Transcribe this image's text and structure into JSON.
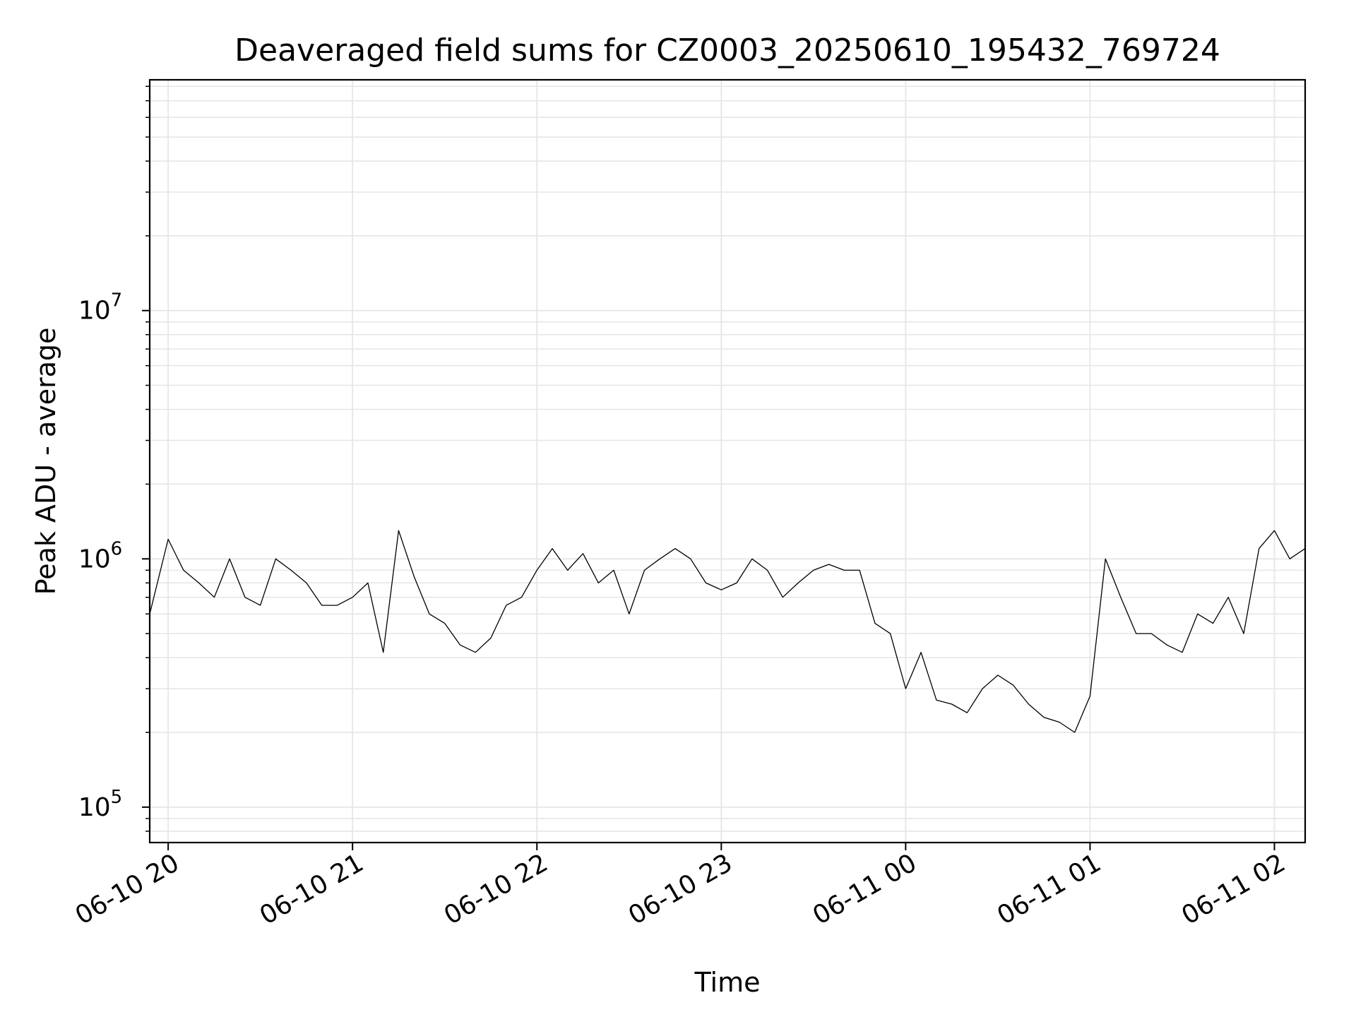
{
  "chart_data": {
    "type": "line",
    "title": "Deaveraged field sums for CZ0003_20250610_195432_769724",
    "xlabel": "Time",
    "ylabel": "Peak ADU - average",
    "y_scale": "log",
    "ylim": [
      72000,
      85000000
    ],
    "xlim": [
      "2025-06-10 19:54",
      "2025-06-11 02:10"
    ],
    "grid": true,
    "line_color": "#000000",
    "grid_color": "#e6e6e6",
    "x_ticks": [
      {
        "value": "2025-06-10 20:00",
        "label": "06-10 20"
      },
      {
        "value": "2025-06-10 21:00",
        "label": "06-10 21"
      },
      {
        "value": "2025-06-10 22:00",
        "label": "06-10 22"
      },
      {
        "value": "2025-06-10 23:00",
        "label": "06-10 23"
      },
      {
        "value": "2025-06-11 00:00",
        "label": "06-11 00"
      },
      {
        "value": "2025-06-11 01:00",
        "label": "06-11 01"
      },
      {
        "value": "2025-06-11 02:00",
        "label": "06-11 02"
      }
    ],
    "y_ticks": [
      {
        "value": 100000,
        "base": "10",
        "exp": "5"
      },
      {
        "value": 1000000,
        "base": "10",
        "exp": "6"
      },
      {
        "value": 10000000,
        "base": "10",
        "exp": "7"
      }
    ],
    "series": [
      {
        "x": [
          "2025-06-10 19:54",
          "2025-06-10 20:00",
          "2025-06-10 20:05",
          "2025-06-10 20:10",
          "2025-06-10 20:15",
          "2025-06-10 20:20",
          "2025-06-10 20:25",
          "2025-06-10 20:30",
          "2025-06-10 20:35",
          "2025-06-10 20:40",
          "2025-06-10 20:45",
          "2025-06-10 20:50",
          "2025-06-10 20:55",
          "2025-06-10 21:00",
          "2025-06-10 21:05",
          "2025-06-10 21:10",
          "2025-06-10 21:15",
          "2025-06-10 21:20",
          "2025-06-10 21:25",
          "2025-06-10 21:30",
          "2025-06-10 21:35",
          "2025-06-10 21:40",
          "2025-06-10 21:45",
          "2025-06-10 21:50",
          "2025-06-10 21:55",
          "2025-06-10 22:00",
          "2025-06-10 22:05",
          "2025-06-10 22:10",
          "2025-06-10 22:15",
          "2025-06-10 22:20",
          "2025-06-10 22:25",
          "2025-06-10 22:30",
          "2025-06-10 22:35",
          "2025-06-10 22:40",
          "2025-06-10 22:45",
          "2025-06-10 22:50",
          "2025-06-10 22:55",
          "2025-06-10 23:00",
          "2025-06-10 23:05",
          "2025-06-10 23:10",
          "2025-06-10 23:15",
          "2025-06-10 23:20",
          "2025-06-10 23:25",
          "2025-06-10 23:30",
          "2025-06-10 23:35",
          "2025-06-10 23:40",
          "2025-06-10 23:45",
          "2025-06-10 23:50",
          "2025-06-10 23:55",
          "2025-06-11 00:00",
          "2025-06-11 00:05",
          "2025-06-11 00:10",
          "2025-06-11 00:15",
          "2025-06-11 00:20",
          "2025-06-11 00:25",
          "2025-06-11 00:30",
          "2025-06-11 00:35",
          "2025-06-11 00:40",
          "2025-06-11 00:45",
          "2025-06-11 00:50",
          "2025-06-11 00:55",
          "2025-06-11 01:00",
          "2025-06-11 01:05",
          "2025-06-11 01:10",
          "2025-06-11 01:15",
          "2025-06-11 01:20",
          "2025-06-11 01:25",
          "2025-06-11 01:30",
          "2025-06-11 01:35",
          "2025-06-11 01:40",
          "2025-06-11 01:45",
          "2025-06-11 01:50",
          "2025-06-11 01:55",
          "2025-06-11 02:00",
          "2025-06-11 02:05",
          "2025-06-11 02:10"
        ],
        "y": [
          600000,
          1200000,
          900000,
          800000,
          700000,
          1000000,
          700000,
          650000,
          1000000,
          900000,
          800000,
          650000,
          650000,
          700000,
          800000,
          420000,
          1300000,
          850000,
          600000,
          550000,
          450000,
          420000,
          480000,
          650000,
          700000,
          900000,
          1100000,
          900000,
          1050000,
          800000,
          900000,
          600000,
          900000,
          1000000,
          1100000,
          1000000,
          800000,
          750000,
          800000,
          1000000,
          900000,
          700000,
          800000,
          900000,
          950000,
          900000,
          900000,
          550000,
          500000,
          300000,
          420000,
          270000,
          260000,
          240000,
          300000,
          340000,
          310000,
          260000,
          230000,
          220000,
          200000,
          280000,
          1000000,
          700000,
          500000,
          500000,
          450000,
          420000,
          600000,
          550000,
          700000,
          500000,
          1100000,
          1300000,
          1000000,
          1100000
        ]
      }
    ]
  }
}
